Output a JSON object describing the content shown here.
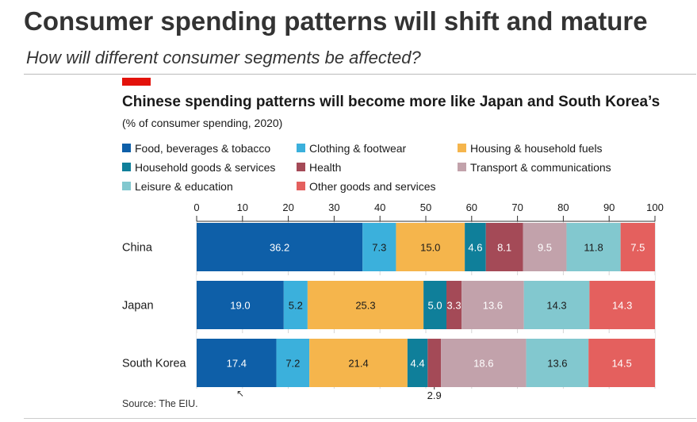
{
  "slide": {
    "title": "Consumer spending patterns will shift and mature",
    "subtitle": "How will different consumer segments be affected?"
  },
  "colors": {
    "accent_tag": "#e3120b",
    "text": "#1a1a1a",
    "segment_label_dark": "#ffffff",
    "segment_label_light": "#1a1a1a"
  },
  "chart_data": {
    "type": "bar",
    "orientation": "horizontal",
    "stacked": true,
    "title": "Chinese spending patterns will become more like Japan and South Korea’s",
    "subtitle": "(% of consumer spending, 2020)",
    "source": "Source: The EIU.",
    "categories": [
      "China",
      "Japan",
      "South Korea"
    ],
    "xlim": [
      0,
      100
    ],
    "xticks": [
      0,
      10,
      20,
      30,
      40,
      50,
      60,
      70,
      80,
      90,
      100
    ],
    "grid": true,
    "legend_placement": "top",
    "series": [
      {
        "name": "Food, beverages & tobacco",
        "color": "#0e5fa8",
        "values": [
          36.2,
          19.0,
          17.4
        ],
        "labels": [
          "36.2",
          "19.0",
          "17.4"
        ],
        "label_color": "light"
      },
      {
        "name": "Clothing & footwear",
        "color": "#3bb0dc",
        "values": [
          7.3,
          5.2,
          7.2
        ],
        "labels": [
          "7.3",
          "5.2",
          "7.2"
        ],
        "label_color": "dark"
      },
      {
        "name": "Housing & household fuels",
        "color": "#f5b54c",
        "values": [
          15.0,
          25.3,
          21.4
        ],
        "labels": [
          "15.0",
          "25.3",
          "21.4"
        ],
        "label_color": "dark"
      },
      {
        "name": "Household goods & services",
        "color": "#0f7f9a",
        "values": [
          4.6,
          5.0,
          4.4
        ],
        "labels": [
          "4.6",
          "5.0",
          "4.4"
        ],
        "label_color": "light"
      },
      {
        "name": "Health",
        "color": "#a44a57",
        "values": [
          8.1,
          3.3,
          2.9
        ],
        "labels": [
          "8.1",
          "3.3",
          ""
        ],
        "label_color": "light"
      },
      {
        "name": "Transport & communications",
        "color": "#c2a2ab",
        "values": [
          9.5,
          13.6,
          18.6
        ],
        "labels": [
          "9.5",
          "13.6",
          "18.6"
        ],
        "label_color": "light"
      },
      {
        "name": "Leisure & education",
        "color": "#82c8cf",
        "values": [
          11.8,
          14.3,
          13.6
        ],
        "labels": [
          "11.8",
          "14.3",
          "13.6"
        ],
        "label_color": "dark"
      },
      {
        "name": "Other goods and services",
        "color": "#e4605e",
        "values": [
          7.5,
          14.3,
          14.5
        ],
        "labels": [
          "7.5",
          "14.3",
          "14.5"
        ],
        "label_color": "light"
      }
    ],
    "annotations": [
      {
        "text": "2.9",
        "category": "South Korea",
        "series": "Health",
        "placement": "below"
      }
    ]
  }
}
